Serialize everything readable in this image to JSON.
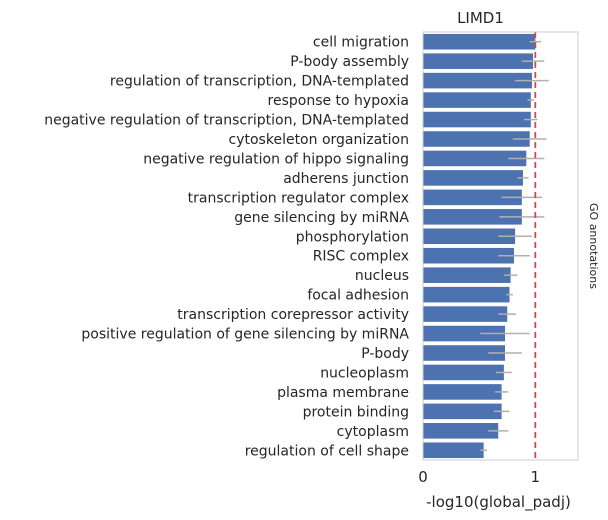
{
  "chart_data": {
    "type": "bar",
    "orientation": "horizontal",
    "title": "LIMD1",
    "xlabel": "-log10(global_padj)",
    "ylabel": "",
    "right_label": "GO annotations",
    "xlim": [
      0,
      1.38
    ],
    "xticks": [
      0,
      1
    ],
    "grid": false,
    "reference_line": {
      "x": 1.0,
      "color": "#c44e52",
      "style": "dashed"
    },
    "bar_color": "#4c72b0",
    "errorbar_color": "#b0b0b0",
    "categories": [
      "cell migration",
      "P-body assembly",
      "regulation of transcription, DNA-templated",
      "response to hypoxia",
      "negative regulation of transcription, DNA-templated",
      "cytoskeleton organization",
      "negative regulation of hippo signaling",
      "adherens junction",
      "transcription regulator complex",
      "gene silencing by miRNA",
      "phosphorylation",
      "RISC complex",
      "nucleus",
      "focal adhesion",
      "transcription corepressor activity",
      "positive regulation of gene silencing by miRNA",
      "P-body",
      "nucleoplasm",
      "plasma membrane",
      "protein binding",
      "cytoplasm",
      "regulation of cell shape"
    ],
    "values": [
      1.0,
      0.98,
      0.97,
      0.96,
      0.96,
      0.95,
      0.92,
      0.89,
      0.88,
      0.88,
      0.82,
      0.81,
      0.78,
      0.77,
      0.75,
      0.73,
      0.73,
      0.72,
      0.7,
      0.7,
      0.67,
      0.54
    ],
    "errors": [
      0.05,
      0.1,
      0.15,
      0.03,
      0.06,
      0.15,
      0.16,
      0.05,
      0.18,
      0.2,
      0.15,
      0.14,
      0.06,
      0.03,
      0.08,
      0.22,
      0.15,
      0.07,
      0.06,
      0.07,
      0.09,
      0.03
    ]
  }
}
